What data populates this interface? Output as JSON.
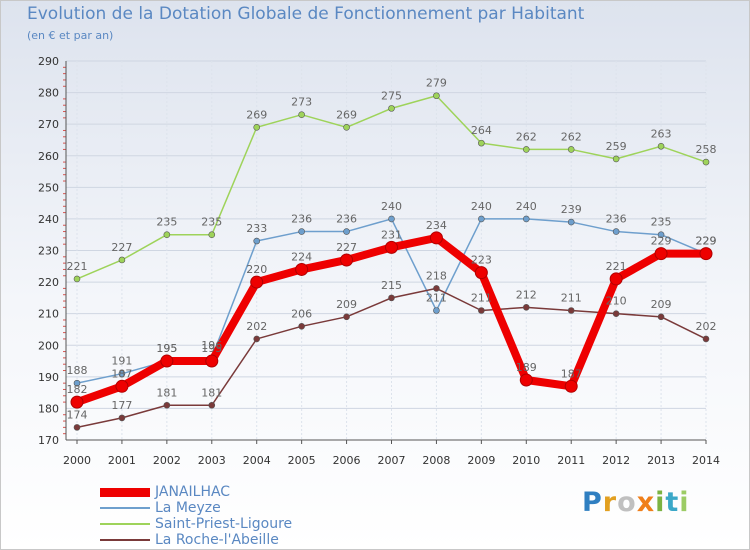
{
  "title": "Evolution de la Dotation Globale de Fonctionnement par Habitant",
  "subtitle": "(en € et par an)",
  "brand": {
    "letters": [
      "P",
      "r",
      "o",
      "x",
      "i",
      "t",
      "i"
    ],
    "colors": [
      "#2f7fc1",
      "#e2a021",
      "#c0c0c0",
      "#ef7f1a",
      "#7cb342",
      "#3ba8c8",
      "#9ccc65"
    ]
  },
  "chart_data": {
    "type": "line",
    "title": "Evolution de la Dotation Globale de Fonctionnement par Habitant",
    "subtitle": "(en € et par an)",
    "xlabel": "",
    "ylabel": "",
    "ylim": [
      170,
      290
    ],
    "yticks": [
      170,
      180,
      190,
      200,
      210,
      220,
      230,
      240,
      250,
      260,
      270,
      280,
      290
    ],
    "grid": true,
    "legend_position": "bottom-left",
    "categories": [
      "2000",
      "2001",
      "2002",
      "2003",
      "2004",
      "2005",
      "2006",
      "2007",
      "2008",
      "2009",
      "2010",
      "2011",
      "2012",
      "2013",
      "2014"
    ],
    "series": [
      {
        "name": "Saint-Priest-Ligoure",
        "color": "#9ed35a",
        "values": [
          221,
          227,
          235,
          235,
          269,
          273,
          269,
          275,
          279,
          264,
          262,
          262,
          259,
          263,
          258
        ]
      },
      {
        "name": "La Meyze",
        "color": "#6e9fcd",
        "values": [
          188,
          191,
          195,
          196,
          233,
          236,
          236,
          240,
          211,
          240,
          240,
          239,
          236,
          235,
          229
        ]
      },
      {
        "name": "La Roche-l'Abeille",
        "color": "#7a3a3a",
        "values": [
          174,
          177,
          181,
          181,
          202,
          206,
          209,
          215,
          218,
          211,
          212,
          211,
          210,
          209,
          202
        ]
      },
      {
        "name": "JANAILHAC",
        "color": "#ee0000",
        "values": [
          182,
          187,
          195,
          195,
          220,
          224,
          227,
          231,
          234,
          223,
          189,
          187,
          221,
          229,
          229
        ]
      }
    ],
    "legend_order": [
      "JANAILHAC",
      "La Meyze",
      "Saint-Priest-Ligoure",
      "La Roche-l'Abeille"
    ]
  }
}
